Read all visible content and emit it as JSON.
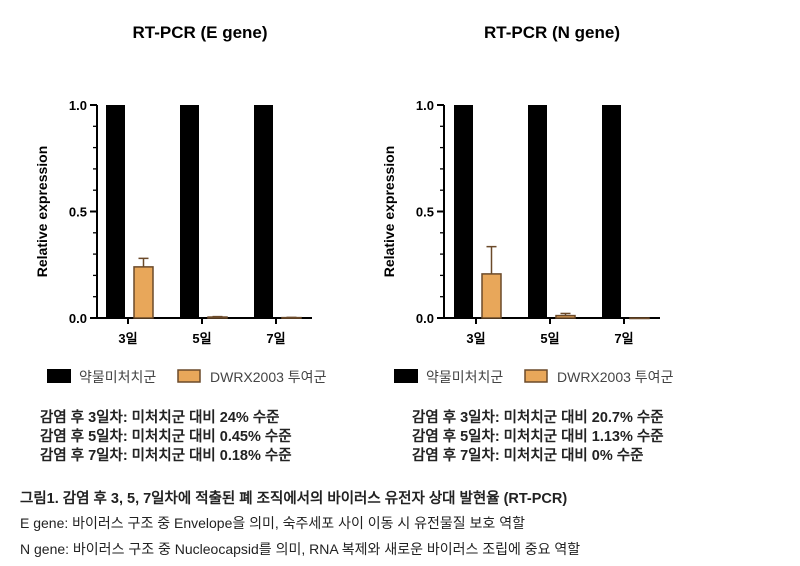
{
  "chart_data": [
    {
      "type": "bar",
      "title": "RT-PCR (E gene)",
      "ylabel": "Relative expression",
      "xlabel": "",
      "ylim": [
        0,
        1.0
      ],
      "yticks": [
        "0.0",
        "0.5",
        "1.0"
      ],
      "categories": [
        "3일",
        "5일",
        "7일"
      ],
      "series": [
        {
          "name": "약물미처치군",
          "color": "#000000",
          "values": [
            1.0,
            1.0,
            1.0
          ],
          "errors": [
            0,
            0,
            0
          ]
        },
        {
          "name": "DWRX2003 투여군",
          "color": "#E8A75A",
          "values": [
            0.24,
            0.0045,
            0.0018
          ],
          "errors": [
            0.04,
            0.002,
            0.001
          ]
        }
      ],
      "legend": "bottom",
      "grid": false
    },
    {
      "type": "bar",
      "title": "RT-PCR (N gene)",
      "ylabel": "Relative expression",
      "xlabel": "",
      "ylim": [
        0,
        1.0
      ],
      "yticks": [
        "0.0",
        "0.5",
        "1.0"
      ],
      "categories": [
        "3일",
        "5일",
        "7일"
      ],
      "series": [
        {
          "name": "약물미처치군",
          "color": "#000000",
          "values": [
            1.0,
            1.0,
            1.0
          ],
          "errors": [
            0,
            0,
            0
          ]
        },
        {
          "name": "DWRX2003 투여군",
          "color": "#E8A75A",
          "values": [
            0.207,
            0.0113,
            0.0
          ],
          "errors": [
            0.128,
            0.01,
            0
          ]
        }
      ],
      "legend": "bottom",
      "grid": false
    }
  ],
  "summary_left": [
    "감염 후 3일차: 미처치군 대비 24% 수준",
    "감염 후 5일차: 미처치군 대비 0.45% 수준",
    "감염 후 7일차: 미처치군 대비 0.18% 수준"
  ],
  "summary_right": [
    "감염 후 3일차: 미처치군 대비 20.7% 수준",
    "감염 후 5일차: 미처치군 대비 1.13% 수준",
    "감염 후 7일차: 미처치군 대비 0% 수준"
  ],
  "caption": {
    "title": "그림1. 감염 후 3, 5, 7일차에 적출된 폐 조직에서의 바이러스 유전자 상대 발현율 (RT-PCR)",
    "line1": "E gene: 바이러스 구조 중 Envelope을 의미, 숙주세포 사이 이동 시 유전물질 보호 역할",
    "line2": "N gene: 바이러스 구조 중 Nucleocapsid를 의미, RNA 복제와 새로운 바이러스 조립에 중요 역할"
  }
}
